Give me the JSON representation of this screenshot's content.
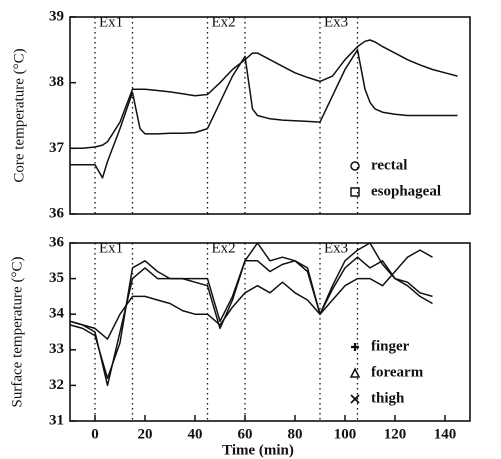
{
  "chart_data": [
    {
      "type": "line",
      "ylabel": "Core temperature (°C)",
      "xlim": [
        -10,
        150
      ],
      "ylim": [
        36,
        39
      ],
      "yticks": [
        36,
        37,
        38,
        39
      ],
      "vlines": [
        0,
        15,
        45,
        60,
        90,
        105
      ],
      "annotations": [
        {
          "text": "Ex1",
          "x": 0
        },
        {
          "text": "Ex2",
          "x": 45
        },
        {
          "text": "Ex3",
          "x": 90
        }
      ],
      "legend": "lower right",
      "x": [
        -10,
        -5,
        0,
        3,
        5,
        10,
        15,
        18,
        20,
        25,
        30,
        35,
        40,
        45,
        50,
        55,
        60,
        63,
        65,
        70,
        75,
        80,
        85,
        90,
        95,
        100,
        105,
        108,
        110,
        112,
        115,
        120,
        125,
        130,
        135,
        140,
        145
      ],
      "series": [
        {
          "name": "rectal",
          "marker": "circle",
          "color": "#111111",
          "values": [
            37.0,
            37.0,
            37.02,
            37.05,
            37.1,
            37.4,
            37.9,
            37.9,
            37.9,
            37.88,
            37.86,
            37.83,
            37.8,
            37.82,
            38.0,
            38.2,
            38.35,
            38.45,
            38.45,
            38.35,
            38.25,
            38.15,
            38.08,
            38.02,
            38.1,
            38.35,
            38.55,
            38.63,
            38.65,
            38.62,
            38.55,
            38.45,
            38.35,
            38.27,
            38.2,
            38.15,
            38.1
          ]
        },
        {
          "name": "esophageal",
          "marker": "square",
          "color": "#111111",
          "values": [
            36.75,
            36.75,
            36.75,
            36.55,
            36.8,
            37.3,
            37.85,
            37.3,
            37.22,
            37.22,
            37.23,
            37.23,
            37.24,
            37.3,
            37.7,
            38.1,
            38.4,
            37.6,
            37.5,
            37.45,
            37.43,
            37.42,
            37.41,
            37.4,
            37.8,
            38.2,
            38.5,
            37.9,
            37.7,
            37.6,
            37.55,
            37.52,
            37.5,
            37.5,
            37.5,
            37.5,
            37.5
          ]
        }
      ]
    },
    {
      "type": "line",
      "xlabel": "Time (min)",
      "ylabel": "Surface temperature (°C)",
      "xlim": [
        -10,
        150
      ],
      "xticks": [
        0,
        20,
        40,
        60,
        80,
        100,
        120,
        140
      ],
      "ylim": [
        31,
        36
      ],
      "yticks": [
        31,
        32,
        33,
        34,
        35,
        36
      ],
      "vlines": [
        0,
        15,
        45,
        60,
        90,
        105
      ],
      "annotations": [
        {
          "text": "Ex1",
          "x": 0
        },
        {
          "text": "Ex2",
          "x": 45
        },
        {
          "text": "Ex3",
          "x": 90
        }
      ],
      "legend": "lower right",
      "x": [
        -10,
        -5,
        0,
        5,
        10,
        15,
        20,
        25,
        30,
        35,
        40,
        45,
        50,
        55,
        60,
        65,
        70,
        75,
        80,
        85,
        90,
        95,
        100,
        105,
        110,
        115,
        120,
        125,
        130,
        135
      ],
      "series": [
        {
          "name": "finger",
          "marker": "plus",
          "color": "#111111",
          "values": [
            33.8,
            33.7,
            33.6,
            33.3,
            34.0,
            34.5,
            34.5,
            34.4,
            34.3,
            34.1,
            34.0,
            34.0,
            33.7,
            34.2,
            34.6,
            34.8,
            34.6,
            34.9,
            34.6,
            34.4,
            34.0,
            34.4,
            34.8,
            35.0,
            35.0,
            34.8,
            35.2,
            35.6,
            35.8,
            35.6
          ]
        },
        {
          "name": "forearm",
          "marker": "triangle",
          "color": "#111111",
          "values": [
            33.7,
            33.6,
            33.4,
            32.2,
            33.2,
            35.3,
            35.5,
            35.2,
            35.0,
            35.0,
            35.0,
            35.0,
            33.8,
            34.5,
            35.5,
            35.5,
            35.2,
            35.4,
            35.5,
            35.2,
            34.0,
            34.7,
            35.3,
            35.6,
            35.3,
            35.5,
            35.0,
            34.8,
            34.5,
            34.3
          ]
        },
        {
          "name": "thigh",
          "marker": "cross",
          "color": "#111111",
          "values": [
            33.8,
            33.7,
            33.5,
            32.0,
            33.5,
            35.0,
            35.3,
            35.0,
            35.0,
            35.0,
            34.9,
            34.8,
            33.6,
            34.4,
            35.5,
            36.0,
            35.5,
            35.6,
            35.5,
            35.3,
            34.0,
            34.8,
            35.5,
            35.8,
            36.0,
            35.4,
            35.0,
            34.9,
            34.6,
            34.5
          ]
        }
      ]
    }
  ]
}
